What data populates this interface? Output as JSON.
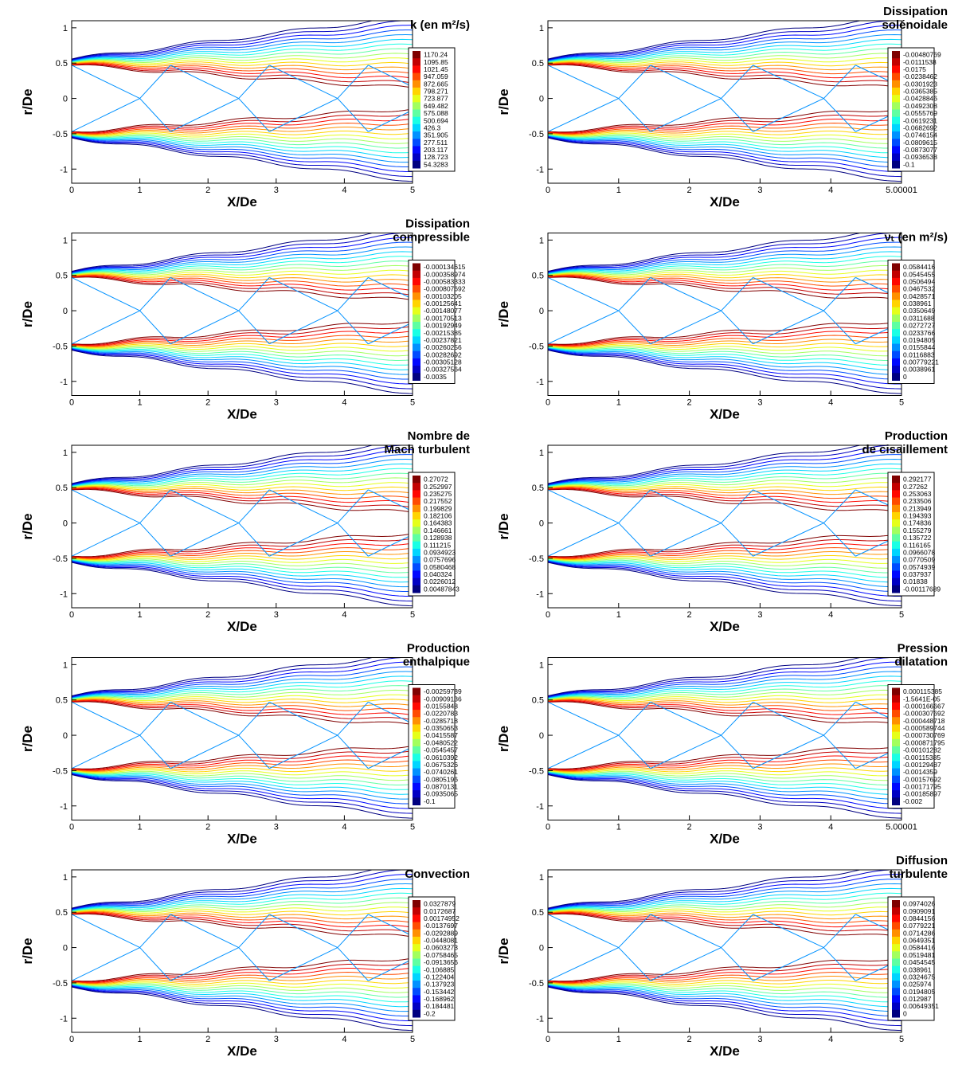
{
  "chart_data": [
    {
      "type": "contour",
      "title": [
        "k (en m²/s)"
      ],
      "xlabel": "X/De",
      "ylabel": "r/De",
      "xlim": [
        0,
        5
      ],
      "ylim": [
        -1.2,
        1.1
      ],
      "xticks": [
        0,
        1,
        2,
        3,
        4,
        5
      ],
      "yticks": [
        1,
        0.5,
        0,
        -0.5,
        -1
      ],
      "levels": [
        1170.24,
        1095.85,
        1021.45,
        947.059,
        872.665,
        798.271,
        723.877,
        649.482,
        575.088,
        500.694,
        426.3,
        351.905,
        277.511,
        203.117,
        128.723,
        54.3283
      ]
    },
    {
      "type": "contour",
      "title": [
        "Dissipation",
        "solénoidale"
      ],
      "xlabel": "X/De",
      "ylabel": "r/De",
      "xlim": [
        0,
        5.00001
      ],
      "ylim": [
        -1.2,
        1.1
      ],
      "xticks": [
        0,
        1,
        2,
        3,
        4,
        5.00001
      ],
      "yticks": [
        1,
        0.5,
        0,
        -0.5,
        -1
      ],
      "levels": [
        -0.00480769,
        -0.0111538,
        -0.0175,
        -0.0238462,
        -0.0301923,
        -0.0365385,
        -0.0428846,
        -0.0492308,
        -0.0555769,
        -0.0619231,
        -0.0682692,
        -0.0746154,
        -0.0809615,
        -0.0873077,
        -0.0936538,
        -0.1
      ]
    },
    {
      "type": "contour",
      "title": [
        "Dissipation",
        "compressible"
      ],
      "xlabel": "X/De",
      "ylabel": "r/De",
      "xlim": [
        0,
        5
      ],
      "ylim": [
        -1.2,
        1.1
      ],
      "xticks": [
        0,
        1,
        2,
        3,
        4,
        5
      ],
      "yticks": [
        1,
        0.5,
        0,
        -0.5,
        -1
      ],
      "levels": [
        -0.000134615,
        -0.000358974,
        -0.000583333,
        -0.000807692,
        -0.00103205,
        -0.00125641,
        -0.00148077,
        -0.00170513,
        -0.00192949,
        -0.00215385,
        -0.00237821,
        -0.00260256,
        -0.00282692,
        -0.00305128,
        -0.00327564,
        -0.0035
      ]
    },
    {
      "type": "contour",
      "title": [
        "νₜ (en m²/s)"
      ],
      "xlabel": "X/De",
      "ylabel": "r/De",
      "xlim": [
        0,
        5
      ],
      "ylim": [
        -1.2,
        1.1
      ],
      "xticks": [
        0,
        1,
        2,
        3,
        4,
        5
      ],
      "yticks": [
        1,
        0.5,
        0,
        -0.5,
        -1
      ],
      "levels": [
        0.0584416,
        0.0545455,
        0.0506494,
        0.0467532,
        0.0428571,
        0.038961,
        0.0350649,
        0.0311688,
        0.0272727,
        0.0233766,
        0.0194805,
        0.0155844,
        0.0116883,
        0.00779221,
        0.0038961,
        0
      ]
    },
    {
      "type": "contour",
      "title": [
        "Nombre de",
        "Mach turbulent"
      ],
      "xlabel": "X/De",
      "ylabel": "r/De",
      "xlim": [
        0,
        5
      ],
      "ylim": [
        -1.2,
        1.1
      ],
      "xticks": [
        0,
        1,
        2,
        3,
        4,
        5
      ],
      "yticks": [
        1,
        0.5,
        0,
        -0.5,
        -1
      ],
      "levels": [
        0.27072,
        0.252997,
        0.235275,
        0.217552,
        0.199829,
        0.182106,
        0.164383,
        0.146661,
        0.128938,
        0.111215,
        0.0934923,
        0.0757696,
        0.0580468,
        0.040324,
        0.0226012,
        0.00487843
      ]
    },
    {
      "type": "contour",
      "title": [
        "Production",
        "de cisaillement"
      ],
      "xlabel": "X/De",
      "ylabel": "r/De",
      "xlim": [
        0,
        5
      ],
      "ylim": [
        -1.2,
        1.1
      ],
      "xticks": [
        0,
        1,
        2,
        3,
        4,
        5
      ],
      "yticks": [
        1,
        0.5,
        0,
        -0.5,
        -1
      ],
      "levels": [
        0.292177,
        0.27262,
        0.253063,
        0.233506,
        0.213949,
        0.194393,
        0.174836,
        0.155279,
        0.135722,
        0.116165,
        0.0966078,
        0.0770509,
        0.0574939,
        0.037937,
        0.01838,
        -0.00117689
      ]
    },
    {
      "type": "contour",
      "title": [
        "Production",
        "enthalpique"
      ],
      "xlabel": "X/De",
      "ylabel": "r/De",
      "xlim": [
        0,
        5
      ],
      "ylim": [
        -1.2,
        1.1
      ],
      "xticks": [
        0,
        1,
        2,
        3,
        4,
        5
      ],
      "yticks": [
        1,
        0.5,
        0,
        -0.5,
        -1
      ],
      "levels": [
        -0.00259789,
        -0.00909136,
        -0.0155848,
        -0.0220783,
        -0.0285718,
        -0.0350653,
        -0.0415587,
        -0.0480522,
        -0.0545457,
        -0.0610392,
        -0.0675326,
        -0.0740261,
        -0.0805196,
        -0.0870131,
        -0.0935065,
        -0.1
      ]
    },
    {
      "type": "contour",
      "title": [
        "Pression",
        "dilatation"
      ],
      "xlabel": "X/De",
      "ylabel": "r/De",
      "xlim": [
        0,
        5.00001
      ],
      "ylim": [
        -1.2,
        1.1
      ],
      "xticks": [
        0,
        1,
        2,
        3,
        4,
        5.00001
      ],
      "yticks": [
        1,
        0.5,
        0,
        -0.5,
        -1
      ],
      "levels": [
        0.000115385,
        {
          "value": -1.5641e-05,
          "label": "-1.5641E-05"
        },
        -0.000166667,
        -0.000307692,
        -0.000448718,
        -0.000589744,
        -0.000730769,
        -0.000871795,
        -0.00101282,
        -0.00115385,
        -0.00129487,
        -0.0014359,
        -0.00157692,
        -0.00171795,
        -0.00185897,
        -0.002
      ]
    },
    {
      "type": "contour",
      "title": [
        "Convection"
      ],
      "xlabel": "X/De",
      "ylabel": "r/De",
      "xlim": [
        0,
        5
      ],
      "ylim": [
        -1.2,
        1.1
      ],
      "xticks": [
        0,
        1,
        2,
        3,
        4,
        5
      ],
      "yticks": [
        1,
        0.5,
        0,
        -0.5,
        -1
      ],
      "levels": [
        0.0327879,
        0.0172687,
        0.00174952,
        -0.0137697,
        -0.0292889,
        -0.0448081,
        -0.0603273,
        -0.0758465,
        -0.0913656,
        -0.106885,
        -0.122404,
        -0.137923,
        -0.153442,
        -0.168962,
        -0.184481,
        -0.2
      ]
    },
    {
      "type": "contour",
      "title": [
        "Diffusion",
        "turbulente"
      ],
      "xlabel": "X/De",
      "ylabel": "r/De",
      "xlim": [
        0,
        5
      ],
      "ylim": [
        -1.2,
        1.1
      ],
      "xticks": [
        0,
        1,
        2,
        3,
        4,
        5
      ],
      "yticks": [
        1,
        0.5,
        0,
        -0.5,
        -1
      ],
      "levels": [
        0.0974026,
        0.0909091,
        0.0844156,
        0.0779221,
        0.0714286,
        0.0649351,
        0.0584416,
        0.0519481,
        0.0454545,
        0.038961,
        0.0324675,
        0.025974,
        0.0194805,
        0.012987,
        0.00649351,
        0
      ]
    }
  ]
}
